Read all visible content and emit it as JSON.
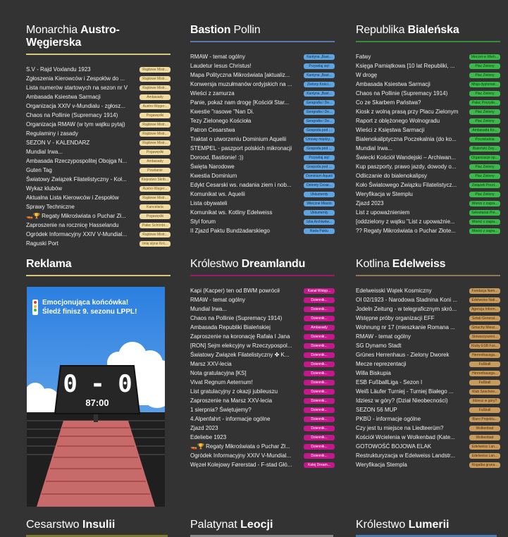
{
  "colors": {
    "background": "#333333",
    "tag_tan": "#f0dca2",
    "tag_blue": "#5fa3e0",
    "tag_green": "#3cb94a",
    "tag_magenta": "#c4178b",
    "tag_brown": "#c89a5c"
  },
  "forums": [
    {
      "id": "austro",
      "title_plain": "Monarchia ",
      "title_bold": "Austro-Węgierska",
      "underline": "#d8c67a",
      "tag_style": "tan",
      "threads": [
        {
          "title": "S.V - Rajd Voxlandu 1923",
          "tag": "Rajdowe Mistr..."
        },
        {
          "title": "Zgłoszenia Kierowców i Zespołów do ...",
          "tag": "Rajdowe Mistr..."
        },
        {
          "title": "Lista numerów startowych na sezon nr V",
          "tag": "Rajdowe Mistr..."
        },
        {
          "title": "Ambasada Ksiestwa Sarmacji",
          "tag": "Ambasady"
        },
        {
          "title": "Organizacja XXIV v-Mundialu - zgłosz...",
          "tag": "Austro-Węger..."
        },
        {
          "title": "Chaos na Pollinie (Supremacy 1914)",
          "tag": "Pogawędki"
        },
        {
          "title": "Organizacja RMAW (w tym wątku pytaj)",
          "tag": "Rajdowe Mistr..."
        },
        {
          "title": "Regulaminy i zasady",
          "tag": "Rajdowe Mistr..."
        },
        {
          "title": "SEZON V - KALENDARZ",
          "tag": "Rajdowe Mistr..."
        },
        {
          "title": "Mundial Irwa...",
          "tag": "Pogawędki"
        },
        {
          "title": "Ambasada Rzeczypospolitej Obojga N...",
          "tag": "Ambasady"
        },
        {
          "title": "Guten Tag",
          "tag": "Powitanie"
        },
        {
          "title": "Światowy Związek Filatelistyczny - Koł...",
          "tag": "Kiejestwo Skrib..."
        },
        {
          "title": "Wykaz klubów",
          "tag": "Austro-Węger..."
        },
        {
          "title": "Aktualna Lista Kierowców i Zespołów",
          "tag": "Rajdowe Mistr..."
        },
        {
          "title": "Sprawy Techniczne",
          "tag": "Kancelaria"
        },
        {
          "title": "🚤🏆 Regaty Mikroświata o Puchar Zł...",
          "tag": "Pogawędki"
        },
        {
          "title": "Zaproszenie na rocznicę Hasselandu",
          "tag": "Pałac Schönbr..."
        },
        {
          "title": "Ogródek Informacyjny XXIV V-Mundial...",
          "tag": "Rajdowe Mistr..."
        },
        {
          "title": "Raguski Port",
          "tag": "Imię słyne Kró..."
        }
      ]
    },
    {
      "id": "bastion",
      "title_plain": "Bastion ",
      "title_bold": "",
      "title_after": "Pollin",
      "underline": "#5a7aa8",
      "tag_style": "blue",
      "threads": [
        {
          "title": "RMAW - temat ogólny",
          "tag": "Kantyna „Bast..."
        },
        {
          "title": "Laudetur Iesus Christus!",
          "tag": "Przywitaj się!"
        },
        {
          "title": "Mapa Polityczna Mikroświata [aktualiz...",
          "tag": "Kantyna „Bast..."
        },
        {
          "title": "Konwersja muzułmanów ordyjskich na ...",
          "tag": "Zielony Kości..."
        },
        {
          "title": "Wieści z zamurza",
          "tag": "Kantyna „Bast..."
        },
        {
          "title": "Panie, pokaż nam drogę [Kościół Star...",
          "tag": "Geografia i De..."
        },
        {
          "title": "Kwestie \"rasowe \"Nan Di.",
          "tag": "Geografia i De..."
        },
        {
          "title": "Tezy Zielonego Kościoła",
          "tag": "Geografia i De..."
        },
        {
          "title": "Patron Cesarstwa",
          "tag": "Gospoda pod ..."
        },
        {
          "title": "Traktat o utworzeniu Dominium Aquelii",
          "tag": "Umowy między..."
        },
        {
          "title": "STEMPEL - paszport polskich mikronacji",
          "tag": "Gospoda pod ..."
        },
        {
          "title": "Dorood, Bastionie! :))",
          "tag": "Przywitaj się!"
        },
        {
          "title": "Święta Narodowe",
          "tag": "Gospoda pod ..."
        },
        {
          "title": "Kwestia Dominium",
          "tag": "Dominium Aqueli"
        },
        {
          "title": "Edykt Cesarski ws. nadania ziem i nob...",
          "tag": "Dekrety Cesar..."
        },
        {
          "title": "Komunikat ws. Aquelii",
          "tag": "Ukkumenty"
        },
        {
          "title": "Lista obywateli",
          "tag": "Wieczne Miasto"
        },
        {
          "title": "Komunikat ws. Kotliny Edelweiss",
          "tag": "Ukkumenty"
        },
        {
          "title": "Styl forum",
          "tag": "Izba Archiwów..."
        },
        {
          "title": "II Zjazd Paktu Bundżadarskiego",
          "tag": "Rada Paktu"
        }
      ]
    },
    {
      "id": "bialenska",
      "title_plain": "Republika ",
      "title_bold": "Bialeńska",
      "underline": "#3a8a3e",
      "tag_style": "green",
      "threads": [
        {
          "title": "Fatwy",
          "tag": "Meczet w Wieh..."
        },
        {
          "title": "Księga Pamiątkowa [10 lat Republiki, ...",
          "tag": "Plac Zielony"
        },
        {
          "title": "W drogę",
          "tag": "Plac Zielony"
        },
        {
          "title": "Ambasada Ksiestwa Sarmacji",
          "tag": "Misja dyplomat..."
        },
        {
          "title": "Chaos na Pollinie (Supremacy 1914)",
          "tag": "Plac Zielony"
        },
        {
          "title": "Co ze Skarbem Państwa?",
          "tag": "Pałac Prezyde..."
        },
        {
          "title": "Kiosk z wolną prasą przy Placu Zielonym",
          "tag": "Plac Zielony"
        },
        {
          "title": "Raport z oblężonego Wolnogradu",
          "tag": "Plac Zielony"
        },
        {
          "title": "Wieści z Księstwa Sarmacji",
          "tag": "Ambasada Ks..."
        },
        {
          "title": "Bialenokaliptyczna Poczekalnia (do ko...",
          "tag": "Poczekalnia"
        },
        {
          "title": "Mundial Irwa...",
          "tag": "Bialeński Zwy..."
        },
        {
          "title": "Świecki Kościół Wandejski – Archiwan...",
          "tag": "Organizacje sp..."
        },
        {
          "title": "Kup paszporty, prawo jazdy, dowody o...",
          "tag": "Plac Zielony"
        },
        {
          "title": "Odliczanie do bialenokalipsy",
          "tag": "Plac Zielony"
        },
        {
          "title": "Koło Światowego Związku Filatelistycz...",
          "tag": "Związek Poczt..."
        },
        {
          "title": "Weryfikacja w Stemplu",
          "tag": "Plac Zielony"
        },
        {
          "title": "Zjazd 2023",
          "tag": "Wieści z zagra..."
        },
        {
          "title": "List z upoważnieniem",
          "tag": "Sekretariat Pre..."
        },
        {
          "title": "[oddzielony z wątku \"List z upoważnie...",
          "tag": "Wieści z zagra..."
        },
        {
          "title": "?? Regaty Mikroświata o Puchar Złote...",
          "tag": "Wieści z zagra..."
        }
      ]
    },
    {
      "id": "reklama",
      "title_plain": "",
      "title_bold": "Reklama",
      "underline": "#d8c67a",
      "ad": {
        "headline_1": "Emocjonująca końcówka!",
        "headline_2": "Śledź finisz 9. sezonu LPPL!",
        "score": "0 - 0",
        "clock": "87:00"
      }
    },
    {
      "id": "dreamland",
      "title_plain": "Królestwo ",
      "title_bold": "Dreamlandu",
      "underline": "#a0186a",
      "tag_style": "magenta",
      "threads": [
        {
          "title": "Kapi (Kacper) ten od BWM powrócił",
          "tag": "Kanał Wstęp..."
        },
        {
          "title": "RMAW - temat ogólny",
          "tag": "Dziennik..."
        },
        {
          "title": "Mundial Irwa...",
          "tag": "Dziennik..."
        },
        {
          "title": "Chaos na Pollinie (Supremacy 1914)",
          "tag": "Dziennik..."
        },
        {
          "title": "Ambasada Republiki Bialeńskiej",
          "tag": "Ambasady"
        },
        {
          "title": "Zaproszenie na koronację Rafała I Jana",
          "tag": "Dziennik..."
        },
        {
          "title": "[RON] Sejm elekcyjny w Rzeczypospol...",
          "tag": "Dziennik..."
        },
        {
          "title": "Światowy Związek Filatelistyczny ✤ K...",
          "tag": "Dziennik..."
        },
        {
          "title": "Marsz XXV-lecia",
          "tag": "Dziennik..."
        },
        {
          "title": "Nota gratulacyjna [KS]",
          "tag": "Dziennik..."
        },
        {
          "title": "Vivat Regnum Aeternum!",
          "tag": "Dziennik..."
        },
        {
          "title": "List gratulacyjny z okazji jubileuszu",
          "tag": "Dziennik..."
        },
        {
          "title": "Zaproszenie na Marsz XXV-lecia",
          "tag": "Dziennik..."
        },
        {
          "title": "1 sierpnia? Świętujemy?",
          "tag": "Dziennik..."
        },
        {
          "title": "4.Alpenfahrt - informacje ogólne",
          "tag": "Dziennik..."
        },
        {
          "title": "Zjazd 2023",
          "tag": "Dziennik..."
        },
        {
          "title": "Edeliebe 1923",
          "tag": "Dziennik..."
        },
        {
          "title": "🚤🏆 Regaty Mikroświata o Puchar Zł...",
          "tag": "Dziennik..."
        },
        {
          "title": "Ogródek Informacyjny XXIV V-Mundial...",
          "tag": "Dziennik..."
        },
        {
          "title": "Węzeł Kolejowy Førerstad - F-stad Głó...",
          "tag": "Kolej Dream..."
        }
      ]
    },
    {
      "id": "edelweiss",
      "title_plain": "Kotlina ",
      "title_bold": "Edelweiss",
      "underline": "#8a7a5a",
      "tag_style": "brown",
      "threads": [
        {
          "title": "Edelweisski Wątek Kosmiczny",
          "tag": "Fundacja Nam..."
        },
        {
          "title": "OI 02/1923 - Narodowa Stadnina Koni ...",
          "tag": "Edelweiss Nati..."
        },
        {
          "title": "Jodeln Zeitung - w telegraficznym skró...",
          "tag": "Agencja Inform..."
        },
        {
          "title": "Wstępne próby organizacji EFF",
          "tag": "Sztab General..."
        },
        {
          "title": "Wohnung nr 17 (mieszkanie Romana ...",
          "tag": "Gmachy Miesz..."
        },
        {
          "title": "RMAW - temat ogólny",
          "tag": "Stowarzyszeni..."
        },
        {
          "title": "SG Dynamo Stadt",
          "tag": "Kluby ESB Fus..."
        },
        {
          "title": "Grünes Herrenhaus - Zielony Dworek",
          "tag": "Herrenhausga..."
        },
        {
          "title": "Mecze reprezentacji",
          "tag": "Fußball"
        },
        {
          "title": "Willa Biskupia",
          "tag": "Herrenhausga..."
        },
        {
          "title": "ESB FußballLiga - Sezon I",
          "tag": "Fußball"
        },
        {
          "title": "Weiß Läufer Turniej - Turniej Białego ...",
          "tag": "Klub Szachow..."
        },
        {
          "title": "Idziesz w góry? (Dział Nieobecności)",
          "tag": "Idziesz w góry?"
        },
        {
          "title": "SEZON 56 MUP",
          "tag": "Fußball"
        },
        {
          "title": "PKBÜ - informacje ogólne",
          "tag": "Biuro Projektu..."
        },
        {
          "title": "Czy jest tu miejsce na Liedteerüm?",
          "tag": "Wolkenbad"
        },
        {
          "title": "Kościół Wcielenia w Wolkenbad (Kate...",
          "tag": "Wolkenbad"
        },
        {
          "title": "GOTOWOŚĆ BOJOWA ELAK",
          "tag": "Edelweiss Lan..."
        },
        {
          "title": "Restrukturyzacja w Edelweiss Landstr...",
          "tag": "Edelweiss Lan..."
        },
        {
          "title": "Weryfikacja Stempla",
          "tag": "Rogalba grana..."
        }
      ]
    }
  ],
  "bottom_titles": [
    {
      "plain": "Cesarstwo ",
      "bold": "Insulii"
    },
    {
      "plain": "Palatynat ",
      "bold": "Leocji"
    },
    {
      "plain": "Królestwo ",
      "bold": "Lumerii"
    }
  ]
}
